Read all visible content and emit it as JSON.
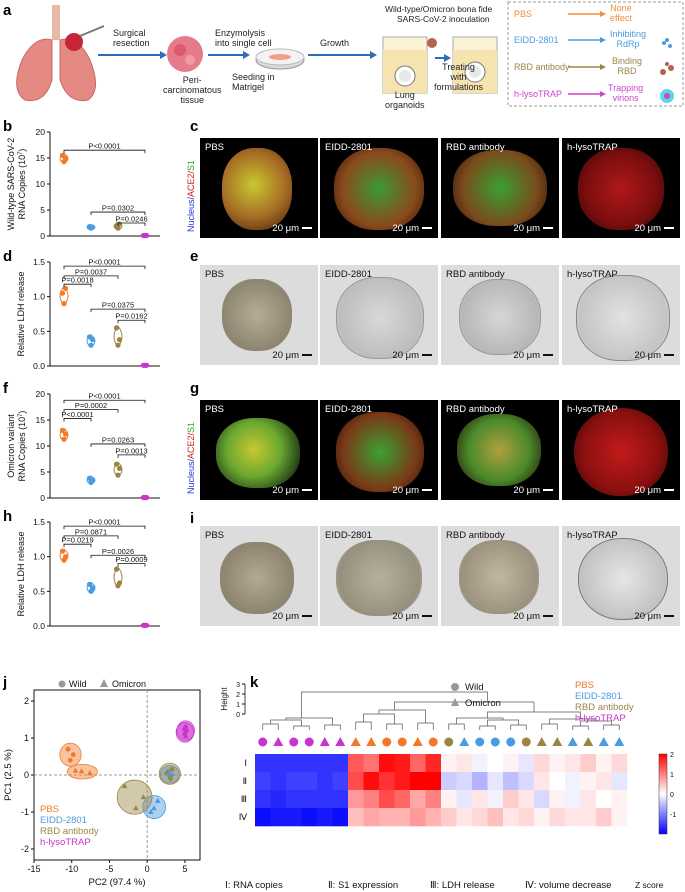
{
  "panels": {
    "a": "a",
    "b": "b",
    "c": "c",
    "d": "d",
    "e": "e",
    "f": "f",
    "g": "g",
    "h": "h",
    "i": "i",
    "j": "j",
    "k": "k"
  },
  "schematic": {
    "step1": "Surgical\nresection",
    "tissue": "Peri-\ncarcinomatous\ntissue",
    "step2": "Enzymolysis\ninto single cell",
    "step3": "Seeding in\nMatrigel",
    "step4": "Growth",
    "header_line1": "Wild-type/Omicron bona fide",
    "header_line2": "SARS-CoV-2 inoculation",
    "organoid_label": "Lung\norganoids",
    "treat": "Treating\nwith\nformulations",
    "legend": [
      {
        "name": "PBS",
        "effect": "None\neffect",
        "color": "#f28c38"
      },
      {
        "name": "EIDD-2801",
        "effect": "Inhibiting\nRdRp",
        "color": "#4a9be0"
      },
      {
        "name": "RBD antibody",
        "effect": "Binding\nRBD",
        "color": "#9b8544"
      },
      {
        "name": "h-lysoTRAP",
        "effect": "Trapping\nvirions",
        "color": "#cc44cc"
      }
    ]
  },
  "groups": [
    "PBS",
    "EIDD-2801",
    "RBD antibody",
    "h-lysoTRAP"
  ],
  "colors": {
    "PBS": "#f07a2a",
    "EIDD-2801": "#4a9be0",
    "RBD antibody": "#9b8544",
    "h-lysoTRAP": "#cc33cc"
  },
  "mic_label": "20 μm",
  "fluor_axis": {
    "nucleus": "Nucleus/",
    "ace2": "ACE2/",
    "s1": "S1"
  },
  "chart_data": [
    {
      "id": "b",
      "type": "scatter",
      "ylabel_lines": [
        "Wild-type SARS-CoV-2",
        "RNA Copies (10",
        "7",
        ")"
      ],
      "yticks": [
        0,
        5,
        10,
        15,
        20
      ],
      "ylim": [
        0,
        20
      ],
      "categories": [
        "PBS",
        "EIDD-2801",
        "RBD antibody",
        "h-lysoTRAP"
      ],
      "series": [
        {
          "name": "PBS",
          "values": [
            15.5,
            14.3,
            14.9
          ]
        },
        {
          "name": "EIDD-2801",
          "values": [
            1.8,
            1.5,
            1.7
          ]
        },
        {
          "name": "RBD antibody",
          "values": [
            1.9,
            1.5,
            2.3
          ]
        },
        {
          "name": "h-lysoTRAP",
          "values": [
            0.1,
            0.1,
            0.1
          ]
        }
      ],
      "annotations": [
        {
          "text": "P<0.0001",
          "from": 0,
          "to": 3,
          "level": 16.5
        },
        {
          "text": "P=0.0302",
          "from": 1,
          "to": 3,
          "level": 4.6
        },
        {
          "text": "P=0.0246",
          "from": 2,
          "to": 3,
          "level": 2.5
        }
      ]
    },
    {
      "id": "d",
      "type": "scatter",
      "ylabel_lines": [
        "Relative LDH release"
      ],
      "yticks": [
        0.0,
        0.5,
        1.0,
        1.5
      ],
      "ylim": [
        0,
        1.5
      ],
      "categories": [
        "PBS",
        "EIDD-2801",
        "RBD antibody",
        "h-lysoTRAP"
      ],
      "series": [
        {
          "name": "PBS",
          "values": [
            1.05,
            0.9,
            1.12
          ]
        },
        {
          "name": "EIDD-2801",
          "values": [
            0.42,
            0.3,
            0.38
          ]
        },
        {
          "name": "RBD antibody",
          "values": [
            0.55,
            0.3,
            0.38
          ]
        },
        {
          "name": "h-lysoTRAP",
          "values": [
            0.01,
            0.01,
            0.01
          ]
        }
      ],
      "annotations": [
        {
          "text": "P<0.0001",
          "from": 0,
          "to": 3,
          "level": 1.44
        },
        {
          "text": "P=0.0037",
          "from": 0,
          "to": 2,
          "level": 1.3
        },
        {
          "text": "P=0.0018",
          "from": 0,
          "to": 1,
          "level": 1.18
        },
        {
          "text": "P=0.0375",
          "from": 1,
          "to": 3,
          "level": 0.82
        },
        {
          "text": "P=0.0162",
          "from": 2,
          "to": 3,
          "level": 0.66
        }
      ]
    },
    {
      "id": "f",
      "type": "scatter",
      "ylabel_lines": [
        "Omicron variant",
        "RNA Copies (10",
        "7",
        ")"
      ],
      "yticks": [
        0,
        5,
        10,
        15,
        20
      ],
      "ylim": [
        0,
        20
      ],
      "categories": [
        "PBS",
        "EIDD-2801",
        "RBD antibody",
        "h-lysoTRAP"
      ],
      "series": [
        {
          "name": "PBS",
          "values": [
            13.0,
            11.3,
            12.3
          ]
        },
        {
          "name": "EIDD-2801",
          "values": [
            3.8,
            3.0,
            3.4
          ]
        },
        {
          "name": "RBD antibody",
          "values": [
            6.5,
            4.4,
            5.7
          ]
        },
        {
          "name": "h-lysoTRAP",
          "values": [
            0.1,
            0.1,
            0.1
          ]
        }
      ],
      "annotations": [
        {
          "text": "P<0.0001",
          "from": 0,
          "to": 3,
          "level": 18.8
        },
        {
          "text": "P=0.0002",
          "from": 0,
          "to": 2,
          "level": 17.0
        },
        {
          "text": "P<0.0001",
          "from": 0,
          "to": 1,
          "level": 15.3
        },
        {
          "text": "P=0.0263",
          "from": 1,
          "to": 3,
          "level": 10.4
        },
        {
          "text": "P=0.0013",
          "from": 2,
          "to": 3,
          "level": 8.3
        }
      ]
    },
    {
      "id": "h",
      "type": "scatter",
      "ylabel_lines": [
        "Relative LDH release"
      ],
      "yticks": [
        0.0,
        0.5,
        1.0,
        1.5
      ],
      "ylim": [
        0,
        1.5
      ],
      "categories": [
        "PBS",
        "EIDD-2801",
        "RBD antibody",
        "h-lysoTRAP"
      ],
      "series": [
        {
          "name": "PBS",
          "values": [
            1.08,
            0.95,
            1.0
          ]
        },
        {
          "name": "EIDD-2801",
          "values": [
            0.6,
            0.5,
            0.55
          ]
        },
        {
          "name": "RBD antibody",
          "values": [
            0.82,
            0.58,
            0.62
          ]
        },
        {
          "name": "h-lysoTRAP",
          "values": [
            0.01,
            0.01,
            0.01
          ]
        }
      ],
      "annotations": [
        {
          "text": "P<0.0001",
          "from": 0,
          "to": 3,
          "level": 1.44
        },
        {
          "text": "P=0.0871",
          "from": 0,
          "to": 2,
          "level": 1.3
        },
        {
          "text": "P=0.0219",
          "from": 0,
          "to": 1,
          "level": 1.18
        },
        {
          "text": "P=0.0026",
          "from": 1,
          "to": 3,
          "level": 1.02
        },
        {
          "text": "P=0.0009",
          "from": 2,
          "to": 3,
          "level": 0.9
        }
      ]
    },
    {
      "id": "j",
      "type": "scatter",
      "xlabel": "PC2 (97.4 %)",
      "ylabel": "PC1 (2.5 %)",
      "xticks": [
        -15,
        -10,
        -5,
        0,
        5
      ],
      "yticks": [
        -2,
        -1,
        0,
        1,
        2
      ],
      "xlim": [
        -15,
        7
      ],
      "ylim": [
        -2.3,
        2.3
      ],
      "legend": [
        "Wild",
        "Omicron"
      ],
      "group_legend": [
        "PBS",
        "EIDD-2801",
        "RBD antibody",
        "h-lysoTRAP"
      ],
      "points": [
        {
          "g": "PBS",
          "m": "circle",
          "x": -10.5,
          "y": 0.7
        },
        {
          "g": "PBS",
          "m": "circle",
          "x": -9.8,
          "y": 0.55
        },
        {
          "g": "PBS",
          "m": "circle",
          "x": -10.2,
          "y": 0.4
        },
        {
          "g": "PBS",
          "m": "triangle",
          "x": -8.7,
          "y": 0.1
        },
        {
          "g": "PBS",
          "m": "triangle",
          "x": -7.6,
          "y": 0.05
        },
        {
          "g": "PBS",
          "m": "triangle",
          "x": -9.5,
          "y": 0.12
        },
        {
          "g": "EIDD-2801",
          "m": "circle",
          "x": 3.0,
          "y": -0.05
        },
        {
          "g": "EIDD-2801",
          "m": "circle",
          "x": 2.8,
          "y": 0.1
        },
        {
          "g": "EIDD-2801",
          "m": "circle",
          "x": 3.2,
          "y": 0.0
        },
        {
          "g": "EIDD-2801",
          "m": "triangle",
          "x": 0.9,
          "y": -0.9
        },
        {
          "g": "EIDD-2801",
          "m": "triangle",
          "x": 1.4,
          "y": -0.7
        },
        {
          "g": "EIDD-2801",
          "m": "triangle",
          "x": 0.5,
          "y": -1.0
        },
        {
          "g": "RBD antibody",
          "m": "circle",
          "x": 3.1,
          "y": -0.1
        },
        {
          "g": "RBD antibody",
          "m": "circle",
          "x": 2.6,
          "y": 0.05
        },
        {
          "g": "RBD antibody",
          "m": "circle",
          "x": 3.3,
          "y": 0.15
        },
        {
          "g": "RBD antibody",
          "m": "triangle",
          "x": -1.5,
          "y": -0.9
        },
        {
          "g": "RBD antibody",
          "m": "triangle",
          "x": -0.5,
          "y": -0.6
        },
        {
          "g": "RBD antibody",
          "m": "triangle",
          "x": -3.0,
          "y": -0.3
        },
        {
          "g": "h-lysoTRAP",
          "m": "circle",
          "x": 5.1,
          "y": 1.3
        },
        {
          "g": "h-lysoTRAP",
          "m": "circle",
          "x": 5.0,
          "y": 1.1
        },
        {
          "g": "h-lysoTRAP",
          "m": "circle",
          "x": 5.2,
          "y": 1.2
        },
        {
          "g": "h-lysoTRAP",
          "m": "triangle",
          "x": 5.1,
          "y": 1.05
        },
        {
          "g": "h-lysoTRAP",
          "m": "triangle",
          "x": 4.9,
          "y": 1.25
        },
        {
          "g": "h-lysoTRAP",
          "m": "triangle",
          "x": 5.0,
          "y": 1.15
        }
      ]
    },
    {
      "id": "k",
      "type": "heatmap",
      "height_label": "Height",
      "height_ticks": [
        0,
        1,
        2,
        3
      ],
      "rows": [
        "Ⅰ",
        "Ⅱ",
        "Ⅲ",
        "Ⅳ"
      ],
      "row_caption": [
        "Ⅰ: RNA copies",
        "Ⅱ: S1 expression",
        "Ⅲ: LDH release",
        "Ⅳ: volume decrease"
      ],
      "colorbar_ticks": [
        -1,
        0,
        1,
        2
      ],
      "colorbar_label": "Z score",
      "legend": [
        "Wild",
        "Omicron"
      ],
      "group_legend": [
        "PBS",
        "EIDD-2801",
        "RBD antibody",
        "h-lysoTRAP"
      ],
      "columns": [
        {
          "g": "h-lysoTRAP",
          "m": "circle"
        },
        {
          "g": "h-lysoTRAP",
          "m": "triangle"
        },
        {
          "g": "h-lysoTRAP",
          "m": "circle"
        },
        {
          "g": "h-lysoTRAP",
          "m": "circle"
        },
        {
          "g": "h-lysoTRAP",
          "m": "triangle"
        },
        {
          "g": "h-lysoTRAP",
          "m": "triangle"
        },
        {
          "g": "PBS",
          "m": "triangle"
        },
        {
          "g": "PBS",
          "m": "triangle"
        },
        {
          "g": "PBS",
          "m": "circle"
        },
        {
          "g": "PBS",
          "m": "circle"
        },
        {
          "g": "PBS",
          "m": "triangle"
        },
        {
          "g": "PBS",
          "m": "circle"
        },
        {
          "g": "RBD antibody",
          "m": "circle"
        },
        {
          "g": "EIDD-2801",
          "m": "triangle"
        },
        {
          "g": "EIDD-2801",
          "m": "circle"
        },
        {
          "g": "EIDD-2801",
          "m": "circle"
        },
        {
          "g": "EIDD-2801",
          "m": "circle"
        },
        {
          "g": "RBD antibody",
          "m": "circle"
        },
        {
          "g": "RBD antibody",
          "m": "triangle"
        },
        {
          "g": "RBD antibody",
          "m": "triangle"
        },
        {
          "g": "EIDD-2801",
          "m": "triangle"
        },
        {
          "g": "RBD antibody",
          "m": "triangle"
        },
        {
          "g": "EIDD-2801",
          "m": "triangle"
        },
        {
          "g": "EIDD-2801",
          "m": "triangle"
        }
      ],
      "values": [
        [
          -1.6,
          -1.6,
          -1.6,
          -1.6,
          -1.6,
          -1.6,
          1.3,
          1.1,
          1.9,
          1.8,
          1.2,
          1.7,
          0.1,
          0.2,
          -0.1,
          0.0,
          0.1,
          -0.2,
          0.3,
          0.1,
          0.2,
          0.4,
          0.1,
          0.3
        ],
        [
          -1.5,
          -1.6,
          -1.5,
          -1.5,
          -1.6,
          -1.5,
          1.4,
          1.9,
          1.6,
          1.8,
          2.0,
          2.3,
          -0.4,
          -0.3,
          -0.6,
          -0.2,
          -0.5,
          -0.3,
          0.2,
          0.0,
          -0.1,
          0.1,
          0.2,
          -0.2
        ],
        [
          -1.6,
          -1.7,
          -1.6,
          -1.6,
          -1.6,
          -1.6,
          0.8,
          1.0,
          1.4,
          1.2,
          0.7,
          1.0,
          0.1,
          -0.2,
          0.2,
          -0.1,
          0.4,
          0.2,
          -0.3,
          0.1,
          -0.1,
          0.2,
          0.0,
          0.1
        ],
        [
          -1.9,
          -1.8,
          -1.8,
          -1.9,
          -1.8,
          -1.9,
          0.5,
          0.7,
          0.6,
          0.6,
          0.8,
          0.6,
          0.4,
          0.2,
          0.3,
          0.5,
          0.2,
          0.3,
          0.1,
          0.3,
          0.2,
          0.2,
          0.4,
          0.1
        ]
      ]
    }
  ]
}
